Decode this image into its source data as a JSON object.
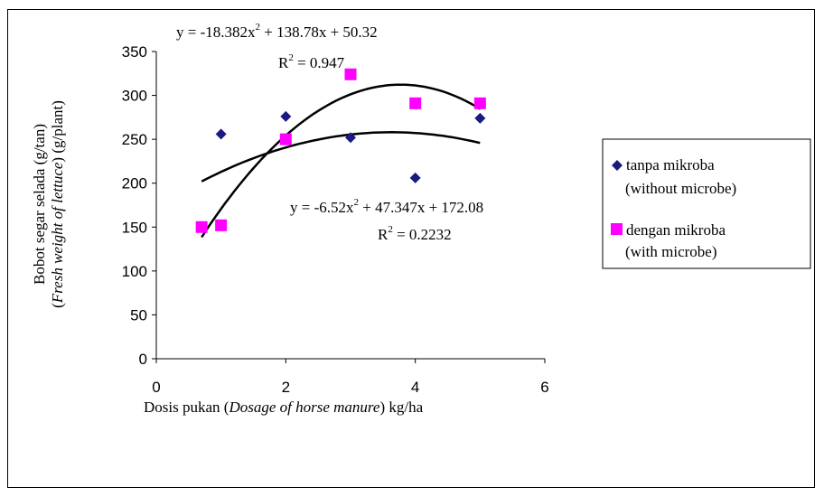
{
  "chart_data": {
    "type": "scatter",
    "xlabel_parts": [
      "Dosis pukan (",
      "Dosage of horse manure",
      ") kg/ha"
    ],
    "ylabel_line1": "Bobot segar selada (g/tan)",
    "ylabel_line2_parts": [
      "(",
      "Fresh weight of lettuce",
      ") (g/plant)"
    ],
    "xlim": [
      0,
      6
    ],
    "ylim": [
      0,
      350
    ],
    "x_ticks": [
      "0",
      "2",
      "4",
      "6"
    ],
    "y_ticks": [
      "0",
      "50",
      "100",
      "150",
      "200",
      "250",
      "300",
      "350"
    ],
    "series": [
      {
        "name_line1": "tanpa mikroba",
        "name_line2": "(without microbe)",
        "marker": "diamond",
        "color": "#1a1a80",
        "points": [
          [
            1,
            256
          ],
          [
            2,
            276
          ],
          [
            3,
            252
          ],
          [
            4,
            206
          ],
          [
            5,
            274
          ]
        ],
        "trend": {
          "a": -6.52,
          "b": 47.347,
          "c": 172.08,
          "x_range": [
            0.7,
            5
          ],
          "equation": "y = -6.52x",
          "equation_tail": " + 47.347x + 172.08",
          "r2_label": "R",
          "r2_value": " = 0.2232"
        }
      },
      {
        "name_line1": "dengan mikroba",
        "name_line2": "(with microbe)",
        "marker": "square",
        "color": "#ff00ff",
        "points": [
          [
            0.7,
            150
          ],
          [
            1,
            152
          ],
          [
            2,
            250
          ],
          [
            3,
            324
          ],
          [
            4,
            291
          ],
          [
            5,
            291
          ]
        ],
        "trend": {
          "a": -18.382,
          "b": 138.78,
          "c": 50.32,
          "x_range": [
            0.7,
            5
          ],
          "equation": "y = -18.382x",
          "equation_tail": " + 138.78x + 50.32",
          "r2_label": "R",
          "r2_value": " = 0.947"
        }
      }
    ],
    "superscript": "2",
    "legend_position": "right"
  }
}
